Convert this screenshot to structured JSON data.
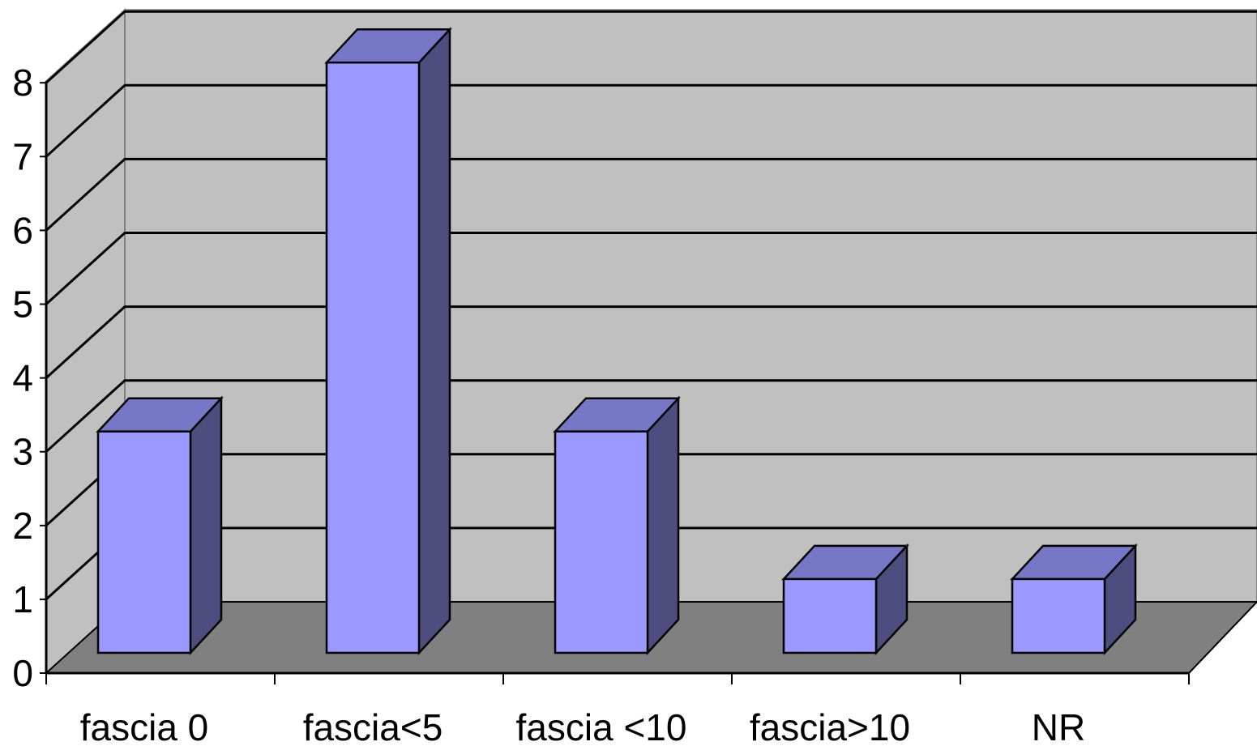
{
  "chart_data": {
    "type": "bar",
    "style": "3d-column",
    "categories": [
      "fascia 0",
      "fascia<5",
      "fascia <10",
      "fascia>10",
      "NR"
    ],
    "values": [
      3,
      8,
      3,
      1,
      1
    ],
    "title": "",
    "xlabel": "",
    "ylabel": "",
    "ylim": [
      0,
      8
    ],
    "yticks": [
      "0",
      "1",
      "2",
      "3",
      "4",
      "5",
      "6",
      "7",
      "8"
    ],
    "grid": true,
    "legend": "none",
    "colors": {
      "bar_front": "#9999ff",
      "bar_top": "#7777c8",
      "bar_side": "#4d4d80",
      "back_wall": "#c0c0c0",
      "side_wall": "#c0c0c0",
      "floor": "#808080",
      "gridline": "#000000"
    }
  }
}
